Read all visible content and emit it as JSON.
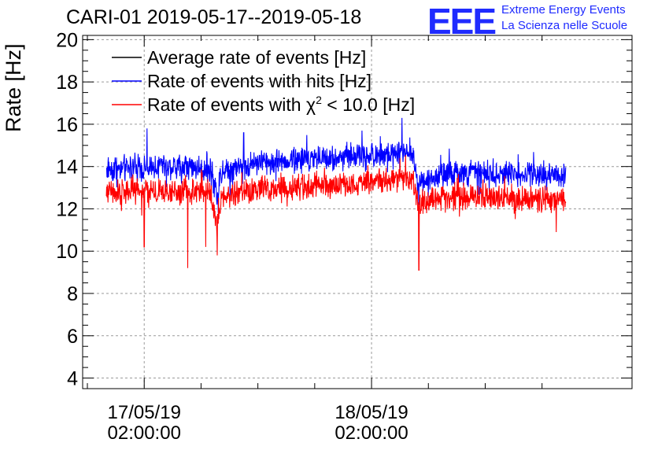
{
  "chart_data": {
    "type": "line",
    "title": "CARI-01 2019-05-17--2019-05-18",
    "ylabel": "Rate [Hz]",
    "xlabel": "",
    "ylim": [
      3.5,
      20.2
    ],
    "yticks": [
      4,
      6,
      8,
      10,
      12,
      14,
      16,
      18,
      20
    ],
    "xlim_hours": [
      -6.5,
      51.5
    ],
    "xticks": [
      {
        "hour": 0,
        "date": "17/05/19",
        "time": "02:00:00"
      },
      {
        "hour": 24,
        "date": "18/05/19",
        "time": "02:00:00"
      }
    ],
    "grid": true,
    "legend": {
      "placement": "top-left",
      "entries": [
        {
          "label": "Average rate of events [Hz]",
          "color": "#000000"
        },
        {
          "label": "Rate of events with hits [Hz]",
          "color": "#0000ff"
        },
        {
          "label_prefix": "Rate of events with ",
          "chi": "χ",
          "sup": "2",
          "label_suffix": " < 10.0 [Hz]",
          "color": "#ff0000"
        }
      ]
    },
    "series": [
      {
        "name": "Rate of events with hits [Hz]",
        "color": "#0000ff",
        "hour_start": -4.0,
        "hour_end": 44.5,
        "baseline": [
          [
            -4.0,
            13.9
          ],
          [
            3.5,
            14.0
          ],
          [
            7.0,
            13.9
          ],
          [
            7.6,
            12.6
          ],
          [
            8.2,
            13.8
          ],
          [
            12.0,
            14.2
          ],
          [
            22.0,
            14.5
          ],
          [
            27.0,
            14.6
          ],
          [
            28.3,
            14.7
          ],
          [
            28.9,
            13.3
          ],
          [
            33.0,
            13.7
          ],
          [
            44.5,
            13.6
          ]
        ],
        "noise_amplitude": 0.45,
        "spikes": [
          [
            0.3,
            15.8
          ],
          [
            27.2,
            16.3
          ],
          [
            23.0,
            15.7
          ],
          [
            10.5,
            15.6
          ]
        ],
        "dips": [
          [
            7.8,
            11.8
          ]
        ]
      },
      {
        "name": "Rate of events with χ2 < 10.0 [Hz]",
        "color": "#ff0000",
        "hour_start": -4.0,
        "hour_end": 44.5,
        "baseline": [
          [
            -4.0,
            12.8
          ],
          [
            7.0,
            12.8
          ],
          [
            7.6,
            11.2
          ],
          [
            8.2,
            12.6
          ],
          [
            12.0,
            12.9
          ],
          [
            22.0,
            13.2
          ],
          [
            27.0,
            13.4
          ],
          [
            28.3,
            13.5
          ],
          [
            28.9,
            12.3
          ],
          [
            33.0,
            12.6
          ],
          [
            44.5,
            12.4
          ]
        ],
        "noise_amplitude": 0.45,
        "spikes": [
          [
            27.0,
            14.4
          ]
        ],
        "dips": [
          [
            0.0,
            10.2
          ],
          [
            4.6,
            9.2
          ],
          [
            6.5,
            10.2
          ],
          [
            7.7,
            9.8
          ],
          [
            29.0,
            9.1
          ],
          [
            43.5,
            10.9
          ]
        ]
      }
    ]
  },
  "logo": {
    "mark": "EEE",
    "line1": "Extreme Energy Events",
    "line2": "La Scienza nelle Scuole",
    "color": "#1f2bff"
  }
}
